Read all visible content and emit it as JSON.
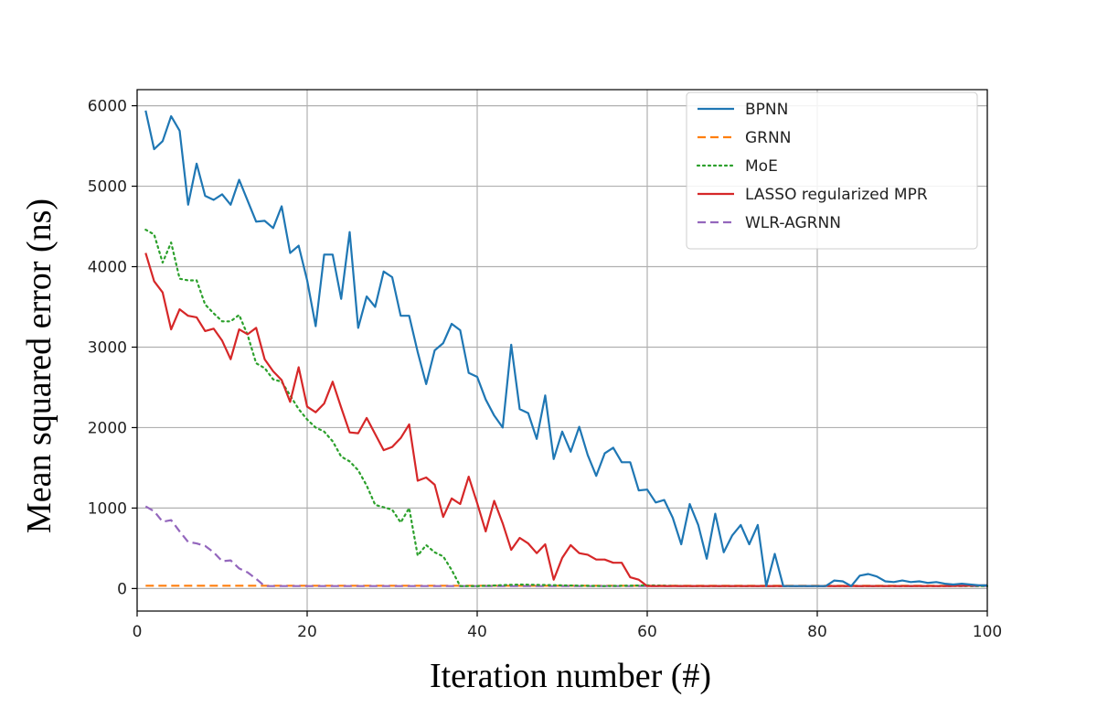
{
  "chart_data": {
    "type": "line",
    "title": "",
    "xlabel": "Iteration number (#)",
    "ylabel": "Mean squared error (ns)",
    "xlim": [
      0,
      100
    ],
    "ylim": [
      -280,
      6200
    ],
    "xticks": [
      0,
      20,
      40,
      60,
      80,
      100
    ],
    "yticks": [
      0,
      1000,
      2000,
      3000,
      4000,
      5000,
      6000
    ],
    "grid": true,
    "legend_position": "top-right",
    "series": [
      {
        "name": "BPNN",
        "color": "#1f77b4",
        "style": "solid",
        "x": [
          1,
          2,
          3,
          4,
          5,
          6,
          7,
          8,
          9,
          10,
          11,
          12,
          13,
          14,
          15,
          16,
          17,
          18,
          19,
          20,
          21,
          22,
          23,
          24,
          25,
          26,
          27,
          28,
          29,
          30,
          31,
          32,
          33,
          34,
          35,
          36,
          37,
          38,
          39,
          40,
          41,
          42,
          43,
          44,
          45,
          46,
          47,
          48,
          49,
          50,
          51,
          52,
          53,
          54,
          55,
          56,
          57,
          58,
          59,
          60,
          61,
          62,
          63,
          64,
          65,
          66,
          67,
          68,
          69,
          70,
          71,
          72,
          73,
          74,
          75,
          76,
          77,
          78,
          79,
          80,
          81,
          82,
          83,
          84,
          85,
          86,
          87,
          88,
          89,
          90,
          91,
          92,
          93,
          94,
          95,
          96,
          97,
          98,
          99,
          100
        ],
        "y": [
          5940,
          5460,
          5560,
          5870,
          5690,
          4770,
          5280,
          4880,
          4830,
          4900,
          4770,
          5080,
          4820,
          4560,
          4570,
          4480,
          4750,
          4170,
          4260,
          3830,
          3260,
          4150,
          4150,
          3600,
          4430,
          3240,
          3630,
          3500,
          3940,
          3870,
          3390,
          3390,
          2940,
          2540,
          2960,
          3050,
          3290,
          3210,
          2680,
          2630,
          2350,
          2150,
          2000,
          3030,
          2230,
          2180,
          1860,
          2400,
          1610,
          1950,
          1700,
          2010,
          1660,
          1400,
          1680,
          1750,
          1570,
          1570,
          1220,
          1230,
          1070,
          1100,
          880,
          550,
          1050,
          790,
          370,
          930,
          450,
          660,
          790,
          550,
          790,
          30,
          430,
          30,
          30,
          30,
          30,
          30,
          30,
          100,
          90,
          30,
          160,
          180,
          150,
          90,
          80,
          100,
          80,
          90,
          70,
          80,
          60,
          50,
          60,
          50,
          40,
          40
        ]
      },
      {
        "name": "GRNN",
        "color": "#ff7f0e",
        "style": "dashed",
        "x": [
          1,
          100
        ],
        "y": [
          35,
          35
        ]
      },
      {
        "name": "MoE",
        "color": "#2ca02c",
        "style": "dotted",
        "x": [
          1,
          2,
          3,
          4,
          5,
          6,
          7,
          8,
          9,
          10,
          11,
          12,
          13,
          14,
          15,
          16,
          17,
          18,
          19,
          20,
          21,
          22,
          23,
          24,
          25,
          26,
          27,
          28,
          29,
          30,
          31,
          32,
          33,
          34,
          35,
          36,
          37,
          38,
          39,
          40,
          45,
          50,
          55,
          60,
          65,
          70,
          75,
          80,
          85,
          90,
          95,
          100
        ],
        "y": [
          4460,
          4400,
          4050,
          4300,
          3850,
          3830,
          3830,
          3530,
          3420,
          3320,
          3320,
          3400,
          3150,
          2800,
          2740,
          2600,
          2570,
          2400,
          2230,
          2100,
          2000,
          1950,
          1830,
          1640,
          1580,
          1470,
          1280,
          1040,
          1010,
          980,
          820,
          1000,
          410,
          540,
          450,
          400,
          230,
          30,
          30,
          30,
          50,
          40,
          30,
          40,
          30,
          30,
          30,
          30,
          30,
          30,
          30,
          30
        ]
      },
      {
        "name": "LASSO regularized MPR",
        "color": "#d62728",
        "style": "solid",
        "x": [
          1,
          2,
          3,
          4,
          5,
          6,
          7,
          8,
          9,
          10,
          11,
          12,
          13,
          14,
          15,
          16,
          17,
          18,
          19,
          20,
          21,
          22,
          23,
          24,
          25,
          26,
          27,
          28,
          29,
          30,
          31,
          32,
          33,
          34,
          35,
          36,
          37,
          38,
          39,
          40,
          41,
          42,
          43,
          44,
          45,
          46,
          47,
          48,
          49,
          50,
          51,
          52,
          53,
          54,
          55,
          56,
          57,
          58,
          59,
          60,
          65,
          70,
          75,
          80,
          85,
          90,
          95,
          100
        ],
        "y": [
          4170,
          3820,
          3680,
          3220,
          3470,
          3390,
          3370,
          3200,
          3230,
          3080,
          2850,
          3220,
          3160,
          3240,
          2850,
          2700,
          2590,
          2320,
          2750,
          2260,
          2190,
          2300,
          2570,
          2250,
          1940,
          1930,
          2120,
          1920,
          1720,
          1760,
          1870,
          2040,
          1340,
          1380,
          1290,
          890,
          1120,
          1050,
          1390,
          1060,
          710,
          1090,
          810,
          480,
          630,
          560,
          440,
          550,
          110,
          380,
          540,
          440,
          420,
          360,
          360,
          320,
          320,
          140,
          110,
          30,
          30,
          30,
          30,
          30,
          30,
          30,
          30,
          40
        ]
      },
      {
        "name": "WLR-AGRNN",
        "color": "#9467bd",
        "style": "dashed",
        "x": [
          1,
          2,
          3,
          4,
          5,
          6,
          7,
          8,
          9,
          10,
          11,
          12,
          13,
          14,
          15,
          20,
          25,
          30,
          35,
          40,
          45,
          50,
          55,
          60,
          65,
          70,
          75,
          80,
          85,
          90,
          95,
          100
        ],
        "y": [
          1020,
          960,
          830,
          850,
          710,
          580,
          560,
          530,
          450,
          340,
          350,
          250,
          200,
          120,
          30,
          30,
          30,
          30,
          30,
          30,
          30,
          30,
          30,
          30,
          30,
          30,
          30,
          30,
          30,
          30,
          30,
          30
        ]
      }
    ]
  }
}
